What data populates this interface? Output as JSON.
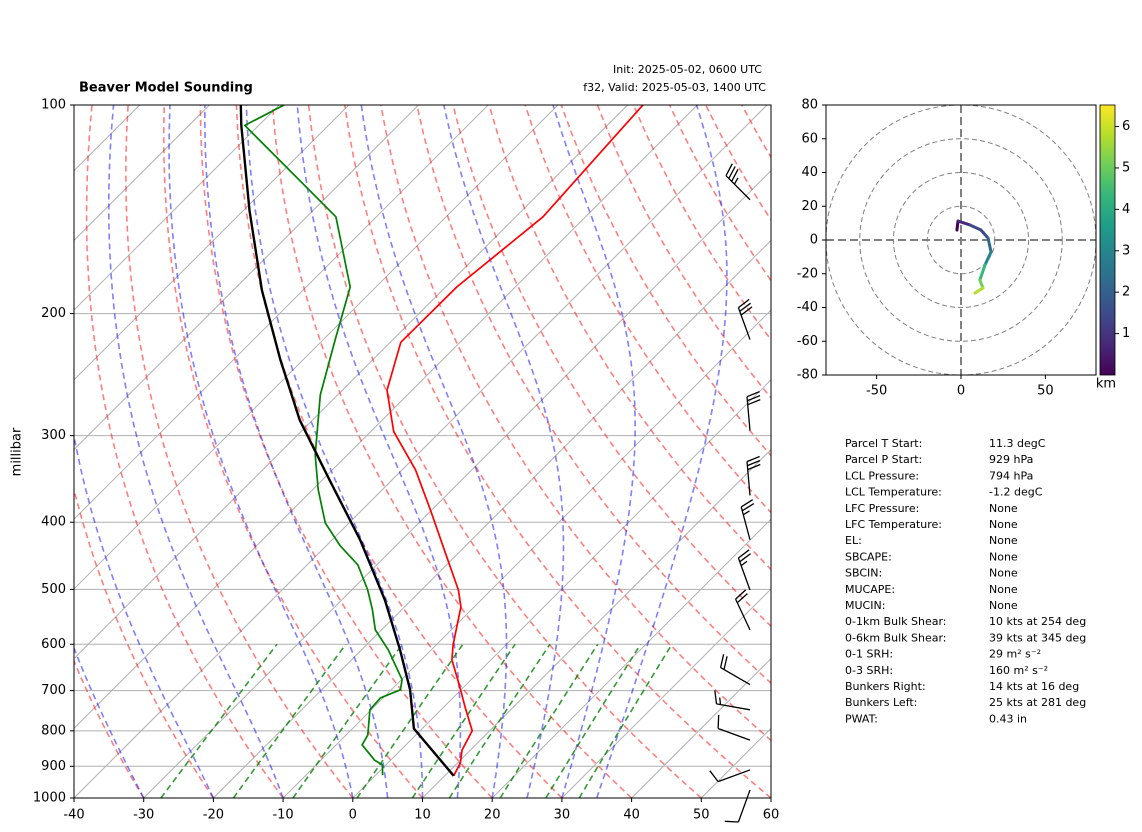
{
  "title": "Beaver Model Sounding",
  "init": "Init: 2025-05-02, 0600 UTC",
  "valid": "f32, Valid: 2025-05-03, 1400 UTC",
  "chart_data": [
    {
      "type": "skewt",
      "ylabel": "millibar",
      "log_y": true,
      "grid": true,
      "xlim": [
        -40,
        60
      ],
      "xticks": [
        -40,
        -30,
        -20,
        -10,
        0,
        10,
        20,
        30,
        40,
        50,
        60
      ],
      "ylim": [
        1000,
        100
      ],
      "yticks": [
        1000,
        900,
        800,
        700,
        600,
        500,
        400,
        300,
        200,
        100
      ],
      "series": [
        {
          "color": "#ff0000",
          "pressure": [
            929,
            890,
            853,
            800,
            741,
            680,
            632,
            601,
            530,
            501,
            439,
            384,
            336,
            296,
            258,
            220,
            183,
            145,
            100
          ],
          "temperature": [
            11.3,
            10.4,
            8.8,
            7.5,
            3.2,
            -1.5,
            -5.6,
            -7.6,
            -11.9,
            -14.7,
            -22.4,
            -30.2,
            -38.1,
            -46.7,
            -53.6,
            -58.5,
            -58.4,
            -56.1,
            -57.8
          ]
        },
        {
          "color": "#008000",
          "pressure": [
            927,
            896,
            882,
            838,
            811,
            746,
            717,
            698,
            675,
            611,
            572,
            535,
            501,
            461,
            432,
            401,
            359,
            320,
            262,
            218,
            183,
            145,
            107,
            100
          ],
          "temperature": [
            1.0,
            -0.5,
            -2.3,
            -6.3,
            -6.9,
            -10.2,
            -10.4,
            -8.7,
            -9.9,
            -16.2,
            -20.9,
            -24.2,
            -27.7,
            -32.7,
            -38.1,
            -43.4,
            -49.2,
            -54.6,
            -62.5,
            -68.3,
            -73.7,
            -85.8,
            -112.0,
            -109.3
          ]
        },
        {
          "color": "#000000",
          "pressure": [
            929,
            794,
            698,
            611,
            518,
            424,
            348,
            285,
            233,
            185,
            142,
            107,
            100
          ],
          "temperature": [
            11.3,
            -1.2,
            -7.3,
            -14.5,
            -23.8,
            -36.0,
            -48.9,
            -61.8,
            -73.3,
            -85.9,
            -99.1,
            -112.5,
            -115.5
          ]
        }
      ],
      "isotherms": [
        -140,
        -130,
        -120,
        -110,
        -100,
        -90,
        -80,
        -70,
        -60,
        -50,
        -40,
        -30,
        -20,
        -10,
        0,
        10,
        20,
        30,
        40,
        50,
        60
      ],
      "dry_adiabats": [
        -30,
        -20,
        -10,
        0,
        10,
        20,
        30,
        40,
        50,
        60,
        70,
        80,
        90,
        100,
        110,
        120,
        130,
        140,
        150,
        160,
        170,
        180,
        190,
        200
      ],
      "moist_adiabats": [
        -30,
        -20,
        -10,
        0,
        5,
        10,
        15,
        20,
        25,
        30,
        35
      ],
      "mixing_ratios": [
        0.0004,
        0.001,
        0.002,
        0.004,
        0.007,
        0.01,
        0.016,
        0.024,
        0.032
      ],
      "wind_barbs": {
        "pressure": [
          137,
          218,
          295,
          366,
          424,
          501,
          572,
          686,
          746,
          825,
          911,
          974
        ],
        "speed": [
          35,
          30,
          30,
          30,
          25,
          25,
          20,
          20,
          15,
          10,
          10,
          10
        ],
        "direction": [
          315,
          340,
          355,
          355,
          345,
          340,
          335,
          300,
          280,
          290,
          250,
          200
        ]
      }
    },
    {
      "type": "hodograph",
      "xlim": [
        -80,
        80
      ],
      "xticks": [
        -50,
        0,
        50
      ],
      "ylim": [
        -80,
        80
      ],
      "yticks": [
        -80,
        -60,
        -40,
        -20,
        0,
        20,
        40,
        60,
        80
      ],
      "rings": [
        20,
        40,
        60,
        80
      ],
      "u": [
        -2.4,
        -1.8,
        5.3,
        11.8,
        16,
        17.8,
        14.2,
        11.2,
        13,
        8.3
      ],
      "v": [
        5.9,
        11.2,
        8.9,
        5.9,
        1.2,
        -7.1,
        -14.8,
        -23.7,
        -28.4,
        -31.4
      ],
      "height": [
        0,
        0.3,
        0.8,
        1.5,
        2,
        2.5,
        3.5,
        4.5,
        5.5,
        6.5
      ],
      "colormap": [
        "#440154",
        "#482878",
        "#3e4989",
        "#31688e",
        "#26828e",
        "#1f9e89",
        "#35b779",
        "#6ece58",
        "#b5de2b",
        "#fde725"
      ],
      "clim": [
        0,
        6.52
      ],
      "cticks": [
        1,
        2,
        3,
        4,
        5,
        6
      ],
      "clabel": "km"
    }
  ],
  "parameters": [
    [
      "Parcel T Start:",
      "11.3 degC"
    ],
    [
      "Parcel P Start:",
      "929 hPa"
    ],
    [
      "LCL Pressure:",
      "794 hPa"
    ],
    [
      "LCL Temperature:",
      "-1.2 degC"
    ],
    [
      "LFC Pressure:",
      "None"
    ],
    [
      "LFC Temperature:",
      "None"
    ],
    [
      "EL:",
      "None"
    ],
    [
      "SBCAPE:",
      "None"
    ],
    [
      "SBCIN:",
      "None"
    ],
    [
      "MUCAPE:",
      "None"
    ],
    [
      "MUCIN:",
      "None"
    ],
    [
      "0-1km Bulk Shear:",
      "10 kts at 254 deg"
    ],
    [
      "0-6km Bulk Shear:",
      "39 kts at 345 deg"
    ],
    [
      "0-1 SRH:",
      "29 m² s⁻²"
    ],
    [
      "0-3 SRH:",
      "160 m² s⁻²"
    ],
    [
      "Bunkers Right:",
      "14 kts at 16 deg"
    ],
    [
      "Bunkers Left:",
      "25 kts at 281 deg"
    ],
    [
      "PWAT:",
      "0.43 in"
    ]
  ]
}
